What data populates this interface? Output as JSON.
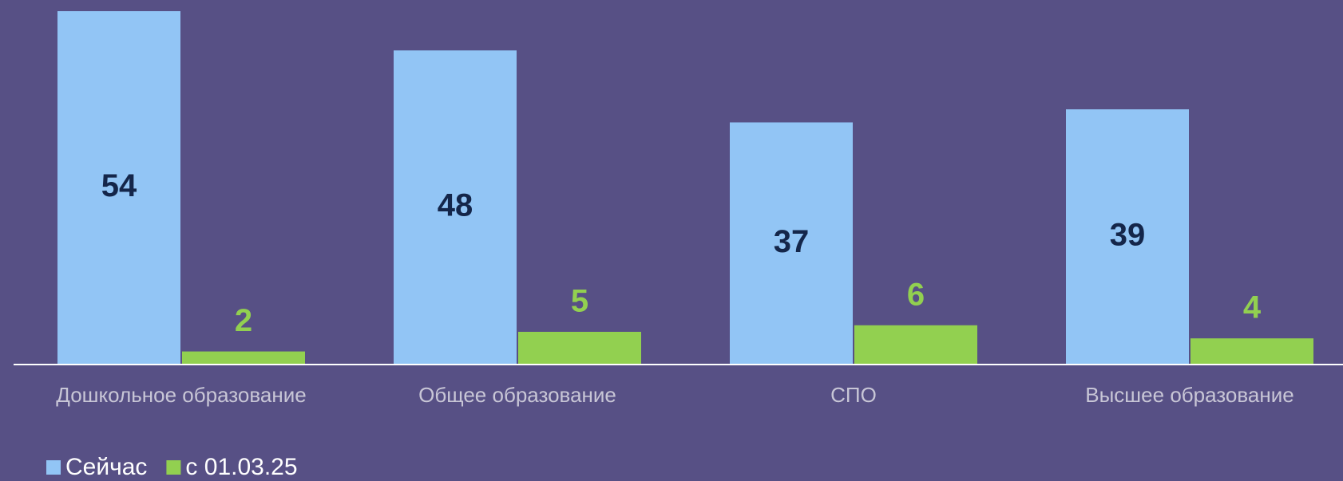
{
  "chart_data": {
    "type": "bar",
    "categories": [
      "Дошкольное образование",
      "Общее образование",
      "СПО",
      "Высшее образование"
    ],
    "series": [
      {
        "name": "Сейчас",
        "color": "#92c5f5",
        "values": [
          54,
          48,
          37,
          39
        ]
      },
      {
        "name": "с 01.03.25",
        "color": "#92d050",
        "values": [
          2,
          5,
          6,
          4
        ]
      }
    ]
  }
}
